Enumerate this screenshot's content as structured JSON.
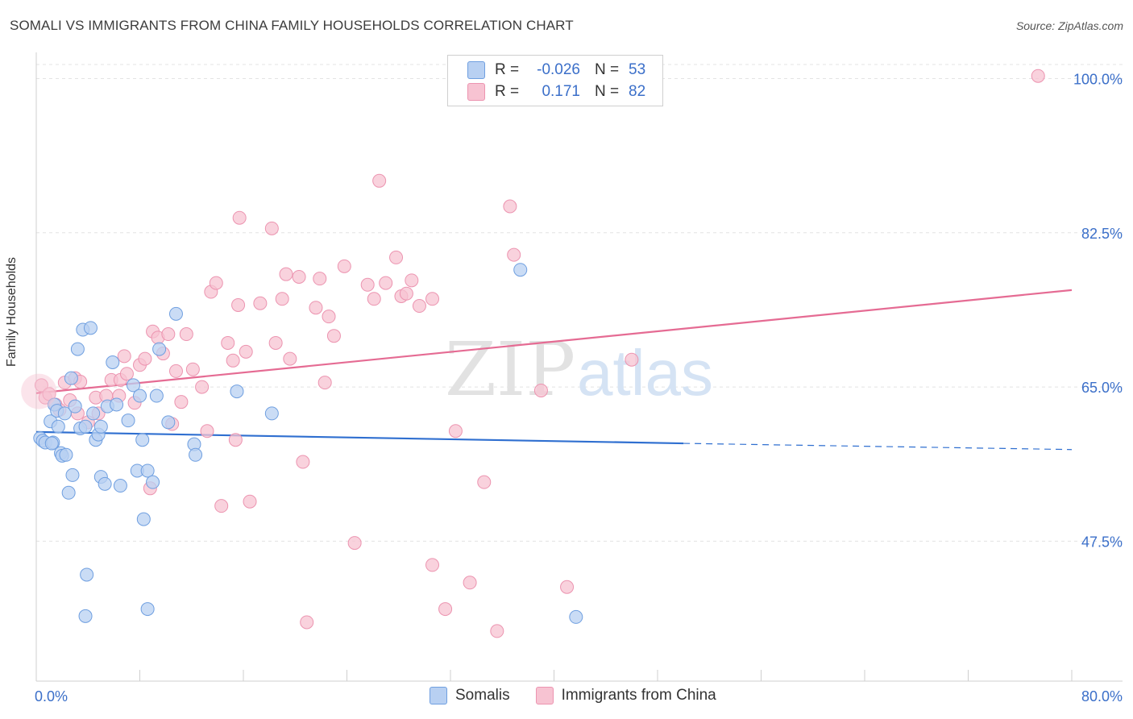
{
  "title": "SOMALI VS IMMIGRANTS FROM CHINA FAMILY HOUSEHOLDS CORRELATION CHART",
  "source": "Source: ZipAtlas.com",
  "watermark": {
    "zip": "ZIP",
    "atlas": "atlas"
  },
  "legend": {
    "rows": [
      {
        "r_label": "R =",
        "r_value": "-0.026",
        "n_label": "N =",
        "n_value": "53"
      },
      {
        "r_label": "R =",
        "r_value": "0.171",
        "n_label": "N =",
        "n_value": "82"
      }
    ]
  },
  "bottom_legend": [
    "Somalis",
    "Immigrants from China"
  ],
  "colors": {
    "blue_fill": "#b8d0f2",
    "blue_stroke": "#6f9fe0",
    "blue_line": "#2f6fd0",
    "pink_fill": "#f7c3d2",
    "pink_stroke": "#ec94b0",
    "pink_line": "#e56b93",
    "tick_label": "#3b6fc9"
  },
  "chart_data": {
    "type": "scatter",
    "title": "SOMALI VS IMMIGRANTS FROM CHINA FAMILY HOUSEHOLDS CORRELATION CHART",
    "xlabel": "",
    "ylabel": "Family Households",
    "xlim": [
      0,
      80
    ],
    "ylim": [
      30,
      100
    ],
    "x_tick_labels": [
      "0.0%",
      "80.0%"
    ],
    "y_ticks": [
      47.5,
      65.0,
      82.5,
      100.0
    ],
    "y_tick_labels": [
      "47.5%",
      "65.0%",
      "82.5%",
      "100.0%"
    ],
    "grid": true,
    "series": [
      {
        "name": "Somalis",
        "color": "blue",
        "R": -0.026,
        "N": 53,
        "trend": {
          "x0": 0,
          "y0": 59.9,
          "x1": 50,
          "y1": 58.6,
          "dash_to_x": 80,
          "dash_to_y": 57.9
        },
        "points": [
          [
            0.3,
            59.2
          ],
          [
            0.5,
            58.9
          ],
          [
            0.7,
            58.7
          ],
          [
            1.1,
            61.1
          ],
          [
            1.3,
            58.7
          ],
          [
            1.4,
            63.0
          ],
          [
            1.6,
            62.3
          ],
          [
            1.7,
            60.5
          ],
          [
            1.9,
            57.5
          ],
          [
            2.0,
            57.2
          ],
          [
            2.2,
            62.0
          ],
          [
            2.3,
            57.3
          ],
          [
            2.5,
            53.0
          ],
          [
            2.7,
            66.0
          ],
          [
            2.8,
            55.0
          ],
          [
            3.0,
            62.8
          ],
          [
            3.2,
            69.3
          ],
          [
            3.4,
            60.3
          ],
          [
            3.6,
            71.5
          ],
          [
            3.8,
            60.5
          ],
          [
            4.2,
            71.7
          ],
          [
            4.4,
            62.0
          ],
          [
            4.6,
            59.0
          ],
          [
            4.8,
            59.6
          ],
          [
            5.0,
            54.8
          ],
          [
            5.3,
            54.0
          ],
          [
            5.5,
            62.8
          ],
          [
            5.9,
            67.8
          ],
          [
            6.2,
            63.0
          ],
          [
            6.5,
            53.8
          ],
          [
            7.1,
            61.2
          ],
          [
            7.5,
            65.2
          ],
          [
            7.8,
            55.5
          ],
          [
            8.0,
            64.0
          ],
          [
            8.2,
            59.0
          ],
          [
            8.3,
            50.0
          ],
          [
            8.6,
            55.5
          ],
          [
            9.0,
            54.2
          ],
          [
            9.3,
            64.0
          ],
          [
            9.5,
            69.3
          ],
          [
            10.2,
            61.0
          ],
          [
            10.8,
            73.3
          ],
          [
            12.2,
            58.5
          ],
          [
            12.3,
            57.3
          ],
          [
            15.5,
            64.5
          ],
          [
            18.2,
            62.0
          ],
          [
            3.9,
            43.7
          ],
          [
            3.8,
            39.0
          ],
          [
            8.6,
            39.8
          ],
          [
            41.7,
            38.9
          ],
          [
            37.4,
            78.3
          ],
          [
            5.0,
            60.5
          ],
          [
            1.2,
            58.6
          ]
        ]
      },
      {
        "name": "Immigrants from China",
        "color": "pink",
        "R": 0.171,
        "N": 82,
        "trend": {
          "x0": 0,
          "y0": 64.3,
          "x1": 80,
          "y1": 76.0
        },
        "points": [
          [
            0.4,
            65.2
          ],
          [
            0.7,
            63.8
          ],
          [
            1.0,
            64.2
          ],
          [
            1.5,
            63.0
          ],
          [
            1.8,
            62.4
          ],
          [
            2.2,
            65.5
          ],
          [
            2.6,
            63.5
          ],
          [
            3.0,
            66.0
          ],
          [
            3.2,
            62.0
          ],
          [
            3.4,
            65.6
          ],
          [
            4.0,
            61.0
          ],
          [
            4.6,
            63.8
          ],
          [
            4.8,
            62.0
          ],
          [
            5.4,
            64.0
          ],
          [
            5.8,
            65.8
          ],
          [
            6.4,
            64.0
          ],
          [
            6.5,
            65.8
          ],
          [
            6.8,
            68.5
          ],
          [
            7.0,
            66.5
          ],
          [
            7.6,
            63.2
          ],
          [
            8.0,
            67.5
          ],
          [
            8.4,
            68.2
          ],
          [
            8.8,
            53.5
          ],
          [
            9.0,
            71.3
          ],
          [
            9.4,
            70.6
          ],
          [
            9.8,
            68.8
          ],
          [
            10.2,
            71.0
          ],
          [
            10.5,
            60.8
          ],
          [
            10.8,
            66.8
          ],
          [
            11.2,
            63.3
          ],
          [
            11.6,
            71.0
          ],
          [
            12.1,
            67.0
          ],
          [
            12.8,
            65.0
          ],
          [
            13.2,
            60.0
          ],
          [
            13.5,
            75.8
          ],
          [
            13.9,
            76.8
          ],
          [
            14.3,
            51.5
          ],
          [
            14.8,
            70.0
          ],
          [
            15.2,
            68.0
          ],
          [
            15.4,
            59.0
          ],
          [
            15.6,
            74.3
          ],
          [
            15.7,
            84.2
          ],
          [
            16.2,
            69.0
          ],
          [
            16.5,
            52.0
          ],
          [
            17.3,
            74.5
          ],
          [
            18.2,
            83.0
          ],
          [
            18.5,
            70.0
          ],
          [
            19.0,
            75.0
          ],
          [
            19.3,
            77.8
          ],
          [
            19.6,
            68.2
          ],
          [
            20.3,
            77.5
          ],
          [
            20.6,
            56.5
          ],
          [
            21.6,
            74.0
          ],
          [
            21.9,
            77.3
          ],
          [
            22.3,
            65.5
          ],
          [
            22.6,
            73.0
          ],
          [
            23.0,
            70.8
          ],
          [
            23.8,
            78.7
          ],
          [
            24.6,
            47.3
          ],
          [
            25.6,
            76.6
          ],
          [
            26.1,
            75.0
          ],
          [
            26.5,
            88.4
          ],
          [
            27.0,
            76.8
          ],
          [
            27.8,
            79.7
          ],
          [
            28.2,
            75.3
          ],
          [
            28.6,
            75.6
          ],
          [
            29.0,
            77.1
          ],
          [
            29.6,
            74.2
          ],
          [
            30.6,
            75.0
          ],
          [
            30.6,
            44.8
          ],
          [
            31.6,
            39.8
          ],
          [
            32.4,
            60.0
          ],
          [
            33.5,
            42.8
          ],
          [
            34.6,
            54.2
          ],
          [
            35.6,
            37.3
          ],
          [
            36.6,
            85.5
          ],
          [
            36.9,
            80.0
          ],
          [
            39.0,
            64.6
          ],
          [
            41.0,
            42.3
          ],
          [
            46.0,
            68.1
          ],
          [
            77.4,
            100.3
          ],
          [
            20.9,
            38.3
          ]
        ]
      }
    ]
  }
}
